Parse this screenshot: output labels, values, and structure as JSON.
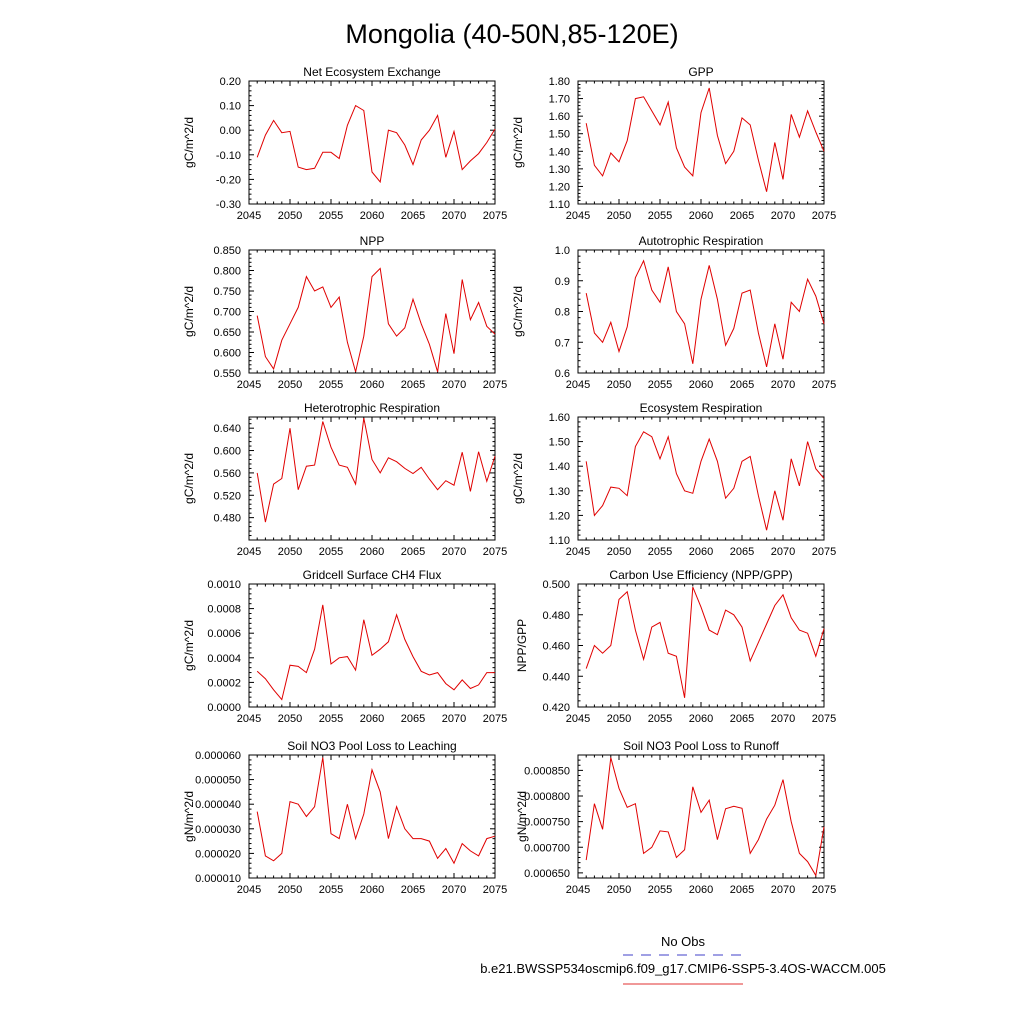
{
  "page": {
    "title": "Mongolia (40-50N,85-120E)"
  },
  "legend": {
    "obs_label": "No Obs",
    "obs_color": "#4040c8",
    "model_label": "b.e21.BWSSP534oscmip6.f09_g17.CMIP6-SSP5-3.4OS-WACCM.005",
    "model_color": "#e03030"
  },
  "style": {
    "line_color": "#e00000"
  },
  "chart_data": [
    {
      "type": "line",
      "title": "Net Ecosystem Exchange",
      "ylabel": "gC/m^2/d",
      "xlim": [
        2045,
        2075
      ],
      "ylim": [
        -0.3,
        0.2
      ],
      "xticks": [
        2045,
        2050,
        2055,
        2060,
        2065,
        2070,
        2075
      ],
      "yticks": [
        -0.3,
        -0.2,
        -0.1,
        0.0,
        0.1,
        0.2
      ],
      "yticklabels": [
        "-0.30",
        "-0.20",
        "-0.10",
        "0.00",
        "0.10",
        "0.20"
      ],
      "x": [
        2046,
        2047,
        2048,
        2049,
        2050,
        2051,
        2052,
        2053,
        2054,
        2055,
        2056,
        2057,
        2058,
        2059,
        2060,
        2061,
        2062,
        2063,
        2064,
        2065,
        2066,
        2067,
        2068,
        2069,
        2070,
        2071,
        2072,
        2073,
        2074,
        2075
      ],
      "series": [
        {
          "values": [
            -0.11,
            -0.02,
            0.04,
            -0.01,
            -0.005,
            -0.15,
            -0.16,
            -0.155,
            -0.09,
            -0.09,
            -0.115,
            0.02,
            0.1,
            0.08,
            -0.17,
            -0.21,
            0.0,
            -0.01,
            -0.06,
            -0.14,
            -0.04,
            0.0,
            0.06,
            -0.11,
            -0.005,
            -0.16,
            -0.125,
            -0.095,
            -0.05,
            0.005
          ]
        }
      ]
    },
    {
      "type": "line",
      "title": "GPP",
      "ylabel": "gC/m^2/d",
      "xlim": [
        2045,
        2075
      ],
      "ylim": [
        1.1,
        1.8
      ],
      "xticks": [
        2045,
        2050,
        2055,
        2060,
        2065,
        2070,
        2075
      ],
      "yticks": [
        1.1,
        1.2,
        1.3,
        1.4,
        1.5,
        1.6,
        1.7,
        1.8
      ],
      "yticklabels": [
        "1.10",
        "1.20",
        "1.30",
        "1.40",
        "1.50",
        "1.60",
        "1.70",
        "1.80"
      ],
      "x": [
        2046,
        2047,
        2048,
        2049,
        2050,
        2051,
        2052,
        2053,
        2054,
        2055,
        2056,
        2057,
        2058,
        2059,
        2060,
        2061,
        2062,
        2063,
        2064,
        2065,
        2066,
        2067,
        2068,
        2069,
        2070,
        2071,
        2072,
        2073,
        2074,
        2075
      ],
      "series": [
        {
          "values": [
            1.56,
            1.32,
            1.26,
            1.39,
            1.34,
            1.46,
            1.7,
            1.71,
            1.63,
            1.55,
            1.68,
            1.42,
            1.31,
            1.26,
            1.62,
            1.76,
            1.49,
            1.33,
            1.4,
            1.59,
            1.55,
            1.35,
            1.17,
            1.45,
            1.24,
            1.61,
            1.48,
            1.63,
            1.51,
            1.4
          ]
        }
      ]
    },
    {
      "type": "line",
      "title": "NPP",
      "ylabel": "gC/m^2/d",
      "xlim": [
        2045,
        2075
      ],
      "ylim": [
        0.55,
        0.85
      ],
      "xticks": [
        2045,
        2050,
        2055,
        2060,
        2065,
        2070,
        2075
      ],
      "yticks": [
        0.55,
        0.6,
        0.65,
        0.7,
        0.75,
        0.8,
        0.85
      ],
      "yticklabels": [
        "0.550",
        "0.600",
        "0.650",
        "0.700",
        "0.750",
        "0.800",
        "0.850"
      ],
      "x": [
        2046,
        2047,
        2048,
        2049,
        2050,
        2051,
        2052,
        2053,
        2054,
        2055,
        2056,
        2057,
        2058,
        2059,
        2060,
        2061,
        2062,
        2063,
        2064,
        2065,
        2066,
        2067,
        2068,
        2069,
        2070,
        2071,
        2072,
        2073,
        2074,
        2075
      ],
      "series": [
        {
          "values": [
            0.69,
            0.59,
            0.56,
            0.63,
            0.67,
            0.71,
            0.785,
            0.75,
            0.76,
            0.71,
            0.735,
            0.625,
            0.553,
            0.64,
            0.785,
            0.805,
            0.67,
            0.64,
            0.66,
            0.73,
            0.67,
            0.62,
            0.553,
            0.695,
            0.597,
            0.778,
            0.68,
            0.722,
            0.664,
            0.645
          ]
        }
      ]
    },
    {
      "type": "line",
      "title": "Autotrophic Respiration",
      "ylabel": "gC/m^2/d",
      "xlim": [
        2045,
        2075
      ],
      "ylim": [
        0.6,
        1.0
      ],
      "xticks": [
        2045,
        2050,
        2055,
        2060,
        2065,
        2070,
        2075
      ],
      "yticks": [
        0.6,
        0.7,
        0.8,
        0.9,
        1.0
      ],
      "yticklabels": [
        "0.6",
        "0.7",
        "0.8",
        "0.9",
        "1.0"
      ],
      "x": [
        2046,
        2047,
        2048,
        2049,
        2050,
        2051,
        2052,
        2053,
        2054,
        2055,
        2056,
        2057,
        2058,
        2059,
        2060,
        2061,
        2062,
        2063,
        2064,
        2065,
        2066,
        2067,
        2068,
        2069,
        2070,
        2071,
        2072,
        2073,
        2074,
        2075
      ],
      "series": [
        {
          "values": [
            0.86,
            0.73,
            0.7,
            0.765,
            0.67,
            0.75,
            0.91,
            0.965,
            0.87,
            0.83,
            0.945,
            0.8,
            0.76,
            0.63,
            0.84,
            0.95,
            0.84,
            0.69,
            0.745,
            0.86,
            0.87,
            0.73,
            0.62,
            0.76,
            0.645,
            0.83,
            0.8,
            0.905,
            0.85,
            0.76
          ]
        }
      ]
    },
    {
      "type": "line",
      "title": "Heterotrophic Respiration",
      "ylabel": "gC/m^2/d",
      "xlim": [
        2045,
        2075
      ],
      "ylim": [
        0.44,
        0.66
      ],
      "xticks": [
        2045,
        2050,
        2055,
        2060,
        2065,
        2070,
        2075
      ],
      "yticks": [
        0.48,
        0.52,
        0.56,
        0.6,
        0.64
      ],
      "yticklabels": [
        "0.480",
        "0.520",
        "0.560",
        "0.600",
        "0.640"
      ],
      "x": [
        2046,
        2047,
        2048,
        2049,
        2050,
        2051,
        2052,
        2053,
        2054,
        2055,
        2056,
        2057,
        2058,
        2059,
        2060,
        2061,
        2062,
        2063,
        2064,
        2065,
        2066,
        2067,
        2068,
        2069,
        2070,
        2071,
        2072,
        2073,
        2074,
        2075
      ],
      "series": [
        {
          "values": [
            0.56,
            0.472,
            0.54,
            0.55,
            0.64,
            0.53,
            0.572,
            0.574,
            0.652,
            0.606,
            0.574,
            0.57,
            0.54,
            0.658,
            0.584,
            0.56,
            0.587,
            0.58,
            0.568,
            0.559,
            0.57,
            0.549,
            0.53,
            0.546,
            0.538,
            0.597,
            0.527,
            0.598,
            0.545,
            0.59
          ]
        }
      ]
    },
    {
      "type": "line",
      "title": "Ecosystem Respiration",
      "ylabel": "gC/m^2/d",
      "xlim": [
        2045,
        2075
      ],
      "ylim": [
        1.1,
        1.6
      ],
      "xticks": [
        2045,
        2050,
        2055,
        2060,
        2065,
        2070,
        2075
      ],
      "yticks": [
        1.1,
        1.2,
        1.3,
        1.4,
        1.5,
        1.6
      ],
      "yticklabels": [
        "1.10",
        "1.20",
        "1.30",
        "1.40",
        "1.50",
        "1.60"
      ],
      "x": [
        2046,
        2047,
        2048,
        2049,
        2050,
        2051,
        2052,
        2053,
        2054,
        2055,
        2056,
        2057,
        2058,
        2059,
        2060,
        2061,
        2062,
        2063,
        2064,
        2065,
        2066,
        2067,
        2068,
        2069,
        2070,
        2071,
        2072,
        2073,
        2074,
        2075
      ],
      "series": [
        {
          "values": [
            1.42,
            1.2,
            1.24,
            1.315,
            1.31,
            1.28,
            1.48,
            1.54,
            1.52,
            1.43,
            1.52,
            1.37,
            1.3,
            1.29,
            1.42,
            1.51,
            1.42,
            1.27,
            1.31,
            1.42,
            1.44,
            1.28,
            1.14,
            1.3,
            1.18,
            1.43,
            1.32,
            1.5,
            1.39,
            1.35
          ]
        }
      ]
    },
    {
      "type": "line",
      "title": "Gridcell Surface CH4 Flux",
      "ylabel": "gC/m^2/d",
      "xlim": [
        2045,
        2075
      ],
      "ylim": [
        0.0,
        0.001
      ],
      "xticks": [
        2045,
        2050,
        2055,
        2060,
        2065,
        2070,
        2075
      ],
      "yticks": [
        0.0,
        0.0002,
        0.0004,
        0.0006,
        0.0008,
        0.001
      ],
      "yticklabels": [
        "0.0000",
        "0.0002",
        "0.0004",
        "0.0006",
        "0.0008",
        "0.0010"
      ],
      "x": [
        2046,
        2047,
        2048,
        2049,
        2050,
        2051,
        2052,
        2053,
        2054,
        2055,
        2056,
        2057,
        2058,
        2059,
        2060,
        2061,
        2062,
        2063,
        2064,
        2065,
        2066,
        2067,
        2068,
        2069,
        2070,
        2071,
        2072,
        2073,
        2074,
        2075
      ],
      "series": [
        {
          "values": [
            0.00029,
            0.00023,
            0.00014,
            6e-05,
            0.00034,
            0.00033,
            0.00028,
            0.00047,
            0.00083,
            0.00035,
            0.0004,
            0.00041,
            0.0003,
            0.00071,
            0.00042,
            0.00047,
            0.00053,
            0.00075,
            0.00055,
            0.00041,
            0.00029,
            0.00026,
            0.00028,
            0.00019,
            0.00014,
            0.00022,
            0.00015,
            0.00018,
            0.00028,
            0.00028
          ]
        }
      ]
    },
    {
      "type": "line",
      "title": "Carbon Use Efficiency (NPP/GPP)",
      "ylabel": "NPP/GPP",
      "xlim": [
        2045,
        2075
      ],
      "ylim": [
        0.42,
        0.5
      ],
      "xticks": [
        2045,
        2050,
        2055,
        2060,
        2065,
        2070,
        2075
      ],
      "yticks": [
        0.42,
        0.44,
        0.46,
        0.48,
        0.5
      ],
      "yticklabels": [
        "0.420",
        "0.440",
        "0.460",
        "0.480",
        "0.500"
      ],
      "x": [
        2046,
        2047,
        2048,
        2049,
        2050,
        2051,
        2052,
        2053,
        2054,
        2055,
        2056,
        2057,
        2058,
        2059,
        2060,
        2061,
        2062,
        2063,
        2064,
        2065,
        2066,
        2067,
        2068,
        2069,
        2070,
        2071,
        2072,
        2073,
        2074,
        2075
      ],
      "series": [
        {
          "values": [
            0.445,
            0.46,
            0.455,
            0.46,
            0.49,
            0.495,
            0.47,
            0.451,
            0.472,
            0.475,
            0.455,
            0.453,
            0.426,
            0.498,
            0.485,
            0.47,
            0.467,
            0.483,
            0.48,
            0.472,
            0.45,
            0.462,
            0.474,
            0.486,
            0.493,
            0.478,
            0.47,
            0.468,
            0.453,
            0.471
          ]
        }
      ]
    },
    {
      "type": "line",
      "title": "Soil NO3 Pool Loss to Leaching",
      "ylabel": "gN/m^2/d",
      "xlim": [
        2045,
        2075
      ],
      "ylim": [
        1e-05,
        6e-05
      ],
      "xticks": [
        2045,
        2050,
        2055,
        2060,
        2065,
        2070,
        2075
      ],
      "yticks": [
        1e-05,
        2e-05,
        3e-05,
        4e-05,
        5e-05,
        6e-05
      ],
      "yticklabels": [
        "0.000010",
        "0.000020",
        "0.000030",
        "0.000040",
        "0.000050",
        "0.000060"
      ],
      "x": [
        2046,
        2047,
        2048,
        2049,
        2050,
        2051,
        2052,
        2053,
        2054,
        2055,
        2056,
        2057,
        2058,
        2059,
        2060,
        2061,
        2062,
        2063,
        2064,
        2065,
        2066,
        2067,
        2068,
        2069,
        2070,
        2071,
        2072,
        2073,
        2074,
        2075
      ],
      "series": [
        {
          "values": [
            3.7e-05,
            1.9e-05,
            1.7e-05,
            2e-05,
            4.1e-05,
            4e-05,
            3.5e-05,
            3.9e-05,
            5.9e-05,
            2.8e-05,
            2.6e-05,
            4e-05,
            2.6e-05,
            3.6e-05,
            5.4e-05,
            4.5e-05,
            2.6e-05,
            3.9e-05,
            3e-05,
            2.6e-05,
            2.6e-05,
            2.5e-05,
            1.8e-05,
            2.2e-05,
            1.6e-05,
            2.4e-05,
            2.1e-05,
            1.9e-05,
            2.6e-05,
            2.7e-05
          ]
        }
      ]
    },
    {
      "type": "line",
      "title": "Soil NO3 Pool Loss to Runoff",
      "ylabel": "gN/m^2/d",
      "xlim": [
        2045,
        2075
      ],
      "ylim": [
        0.00064,
        0.00088
      ],
      "xticks": [
        2045,
        2050,
        2055,
        2060,
        2065,
        2070,
        2075
      ],
      "yticks": [
        0.00065,
        0.0007,
        0.00075,
        0.0008,
        0.00085
      ],
      "yticklabels": [
        "0.000650",
        "0.000700",
        "0.000750",
        "0.000800",
        "0.000850"
      ],
      "x": [
        2046,
        2047,
        2048,
        2049,
        2050,
        2051,
        2052,
        2053,
        2054,
        2055,
        2056,
        2057,
        2058,
        2059,
        2060,
        2061,
        2062,
        2063,
        2064,
        2065,
        2066,
        2067,
        2068,
        2069,
        2070,
        2071,
        2072,
        2073,
        2074,
        2075
      ],
      "series": [
        {
          "values": [
            0.000675,
            0.000785,
            0.000735,
            0.000875,
            0.000815,
            0.000778,
            0.000785,
            0.000688,
            0.0007,
            0.000732,
            0.00073,
            0.00068,
            0.000695,
            0.000818,
            0.000768,
            0.000792,
            0.000715,
            0.000775,
            0.00078,
            0.000776,
            0.000688,
            0.000715,
            0.000755,
            0.000782,
            0.000832,
            0.00075,
            0.000688,
            0.000672,
            0.000645,
            0.00074
          ]
        }
      ]
    }
  ]
}
